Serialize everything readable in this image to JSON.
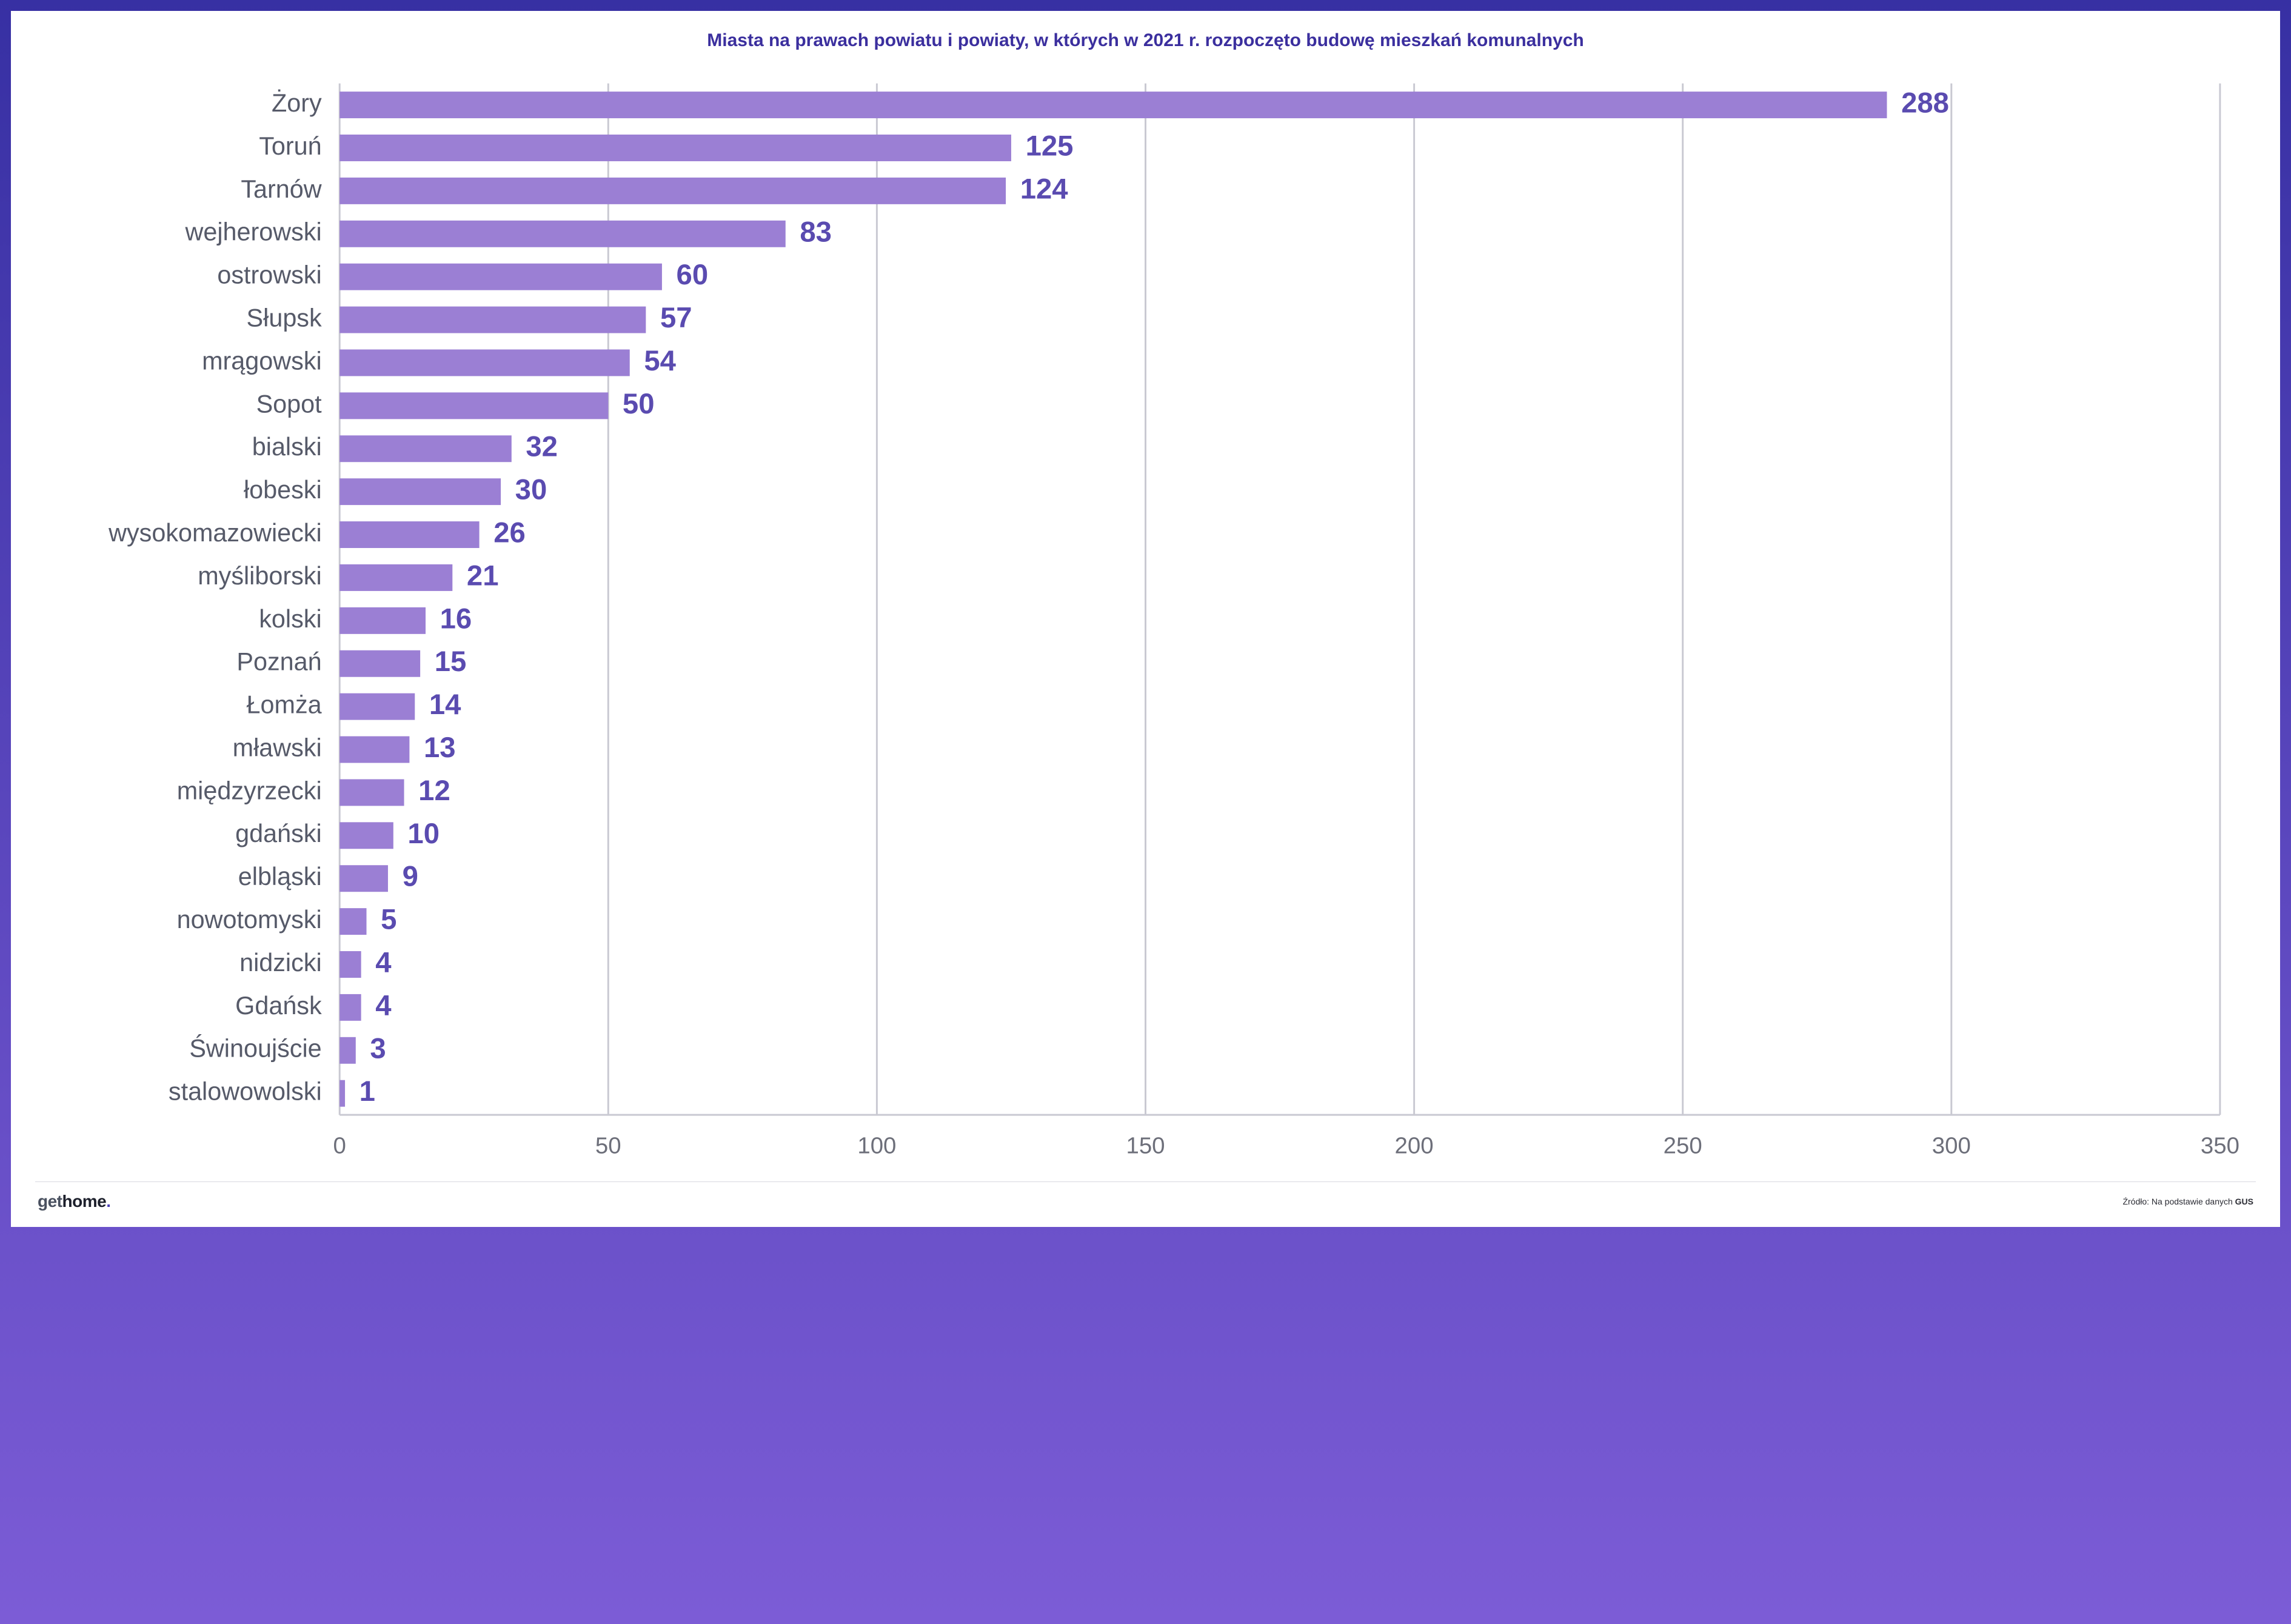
{
  "title": "Miasta na prawach powiatu i powiaty, w których w 2021 r. rozpoczęto budowę mieszkań komunalnych",
  "title_color": "#3b2f9e",
  "title_fontsize": 30,
  "chart": {
    "type": "bar-horizontal",
    "bar_color": "#9b7fd4",
    "value_label_color": "#5a4bb0",
    "value_label_fontsize": 16,
    "value_label_fontweight": "700",
    "category_label_color": "#565a69",
    "category_label_fontsize": 14,
    "axis_line_color": "#c9c9d2",
    "grid_color": "#c9c9d2",
    "tick_label_color": "#6d6f7a",
    "tick_label_fontsize": 13,
    "background_color": "#ffffff",
    "xlim": [
      0,
      350
    ],
    "xtick_step": 50,
    "bar_height_ratio": 0.62,
    "categories": [
      "Żory",
      "Toruń",
      "Tarnów",
      "wejherowski",
      "ostrowski",
      "Słupsk",
      "mrągowski",
      "Sopot",
      "bialski",
      "łobeski",
      "wysokomazowiecki",
      "myśliborski",
      "kolski",
      "Poznań",
      "Łomża",
      "mławski",
      "międzyrzecki",
      "gdański",
      "elbląski",
      "nowotomyski",
      "nidzicki",
      "Gdańsk",
      "Świnoujście",
      "stalowowolski"
    ],
    "values": [
      288,
      125,
      124,
      83,
      60,
      57,
      54,
      50,
      32,
      30,
      26,
      21,
      16,
      15,
      14,
      13,
      12,
      10,
      9,
      5,
      4,
      4,
      3,
      1
    ]
  },
  "footer": {
    "logo_get": {
      "text": "get",
      "color": "#4a5160",
      "fontsize": 28
    },
    "logo_home": {
      "text": "home",
      "color": "#1c1f2b",
      "fontsize": 28
    },
    "logo_dot": {
      "text": ".",
      "color": "#4b3fb5",
      "fontsize": 28
    },
    "source_prefix": "Źródło: Na podstawie danych ",
    "source_strong": "GUS",
    "source_color": "#2a2b33"
  },
  "frame": {
    "border_gradient_from": "#3730a3",
    "border_gradient_to": "#7c5cd6",
    "card_bg": "#ffffff",
    "divider_color": "#d9d9e0"
  }
}
